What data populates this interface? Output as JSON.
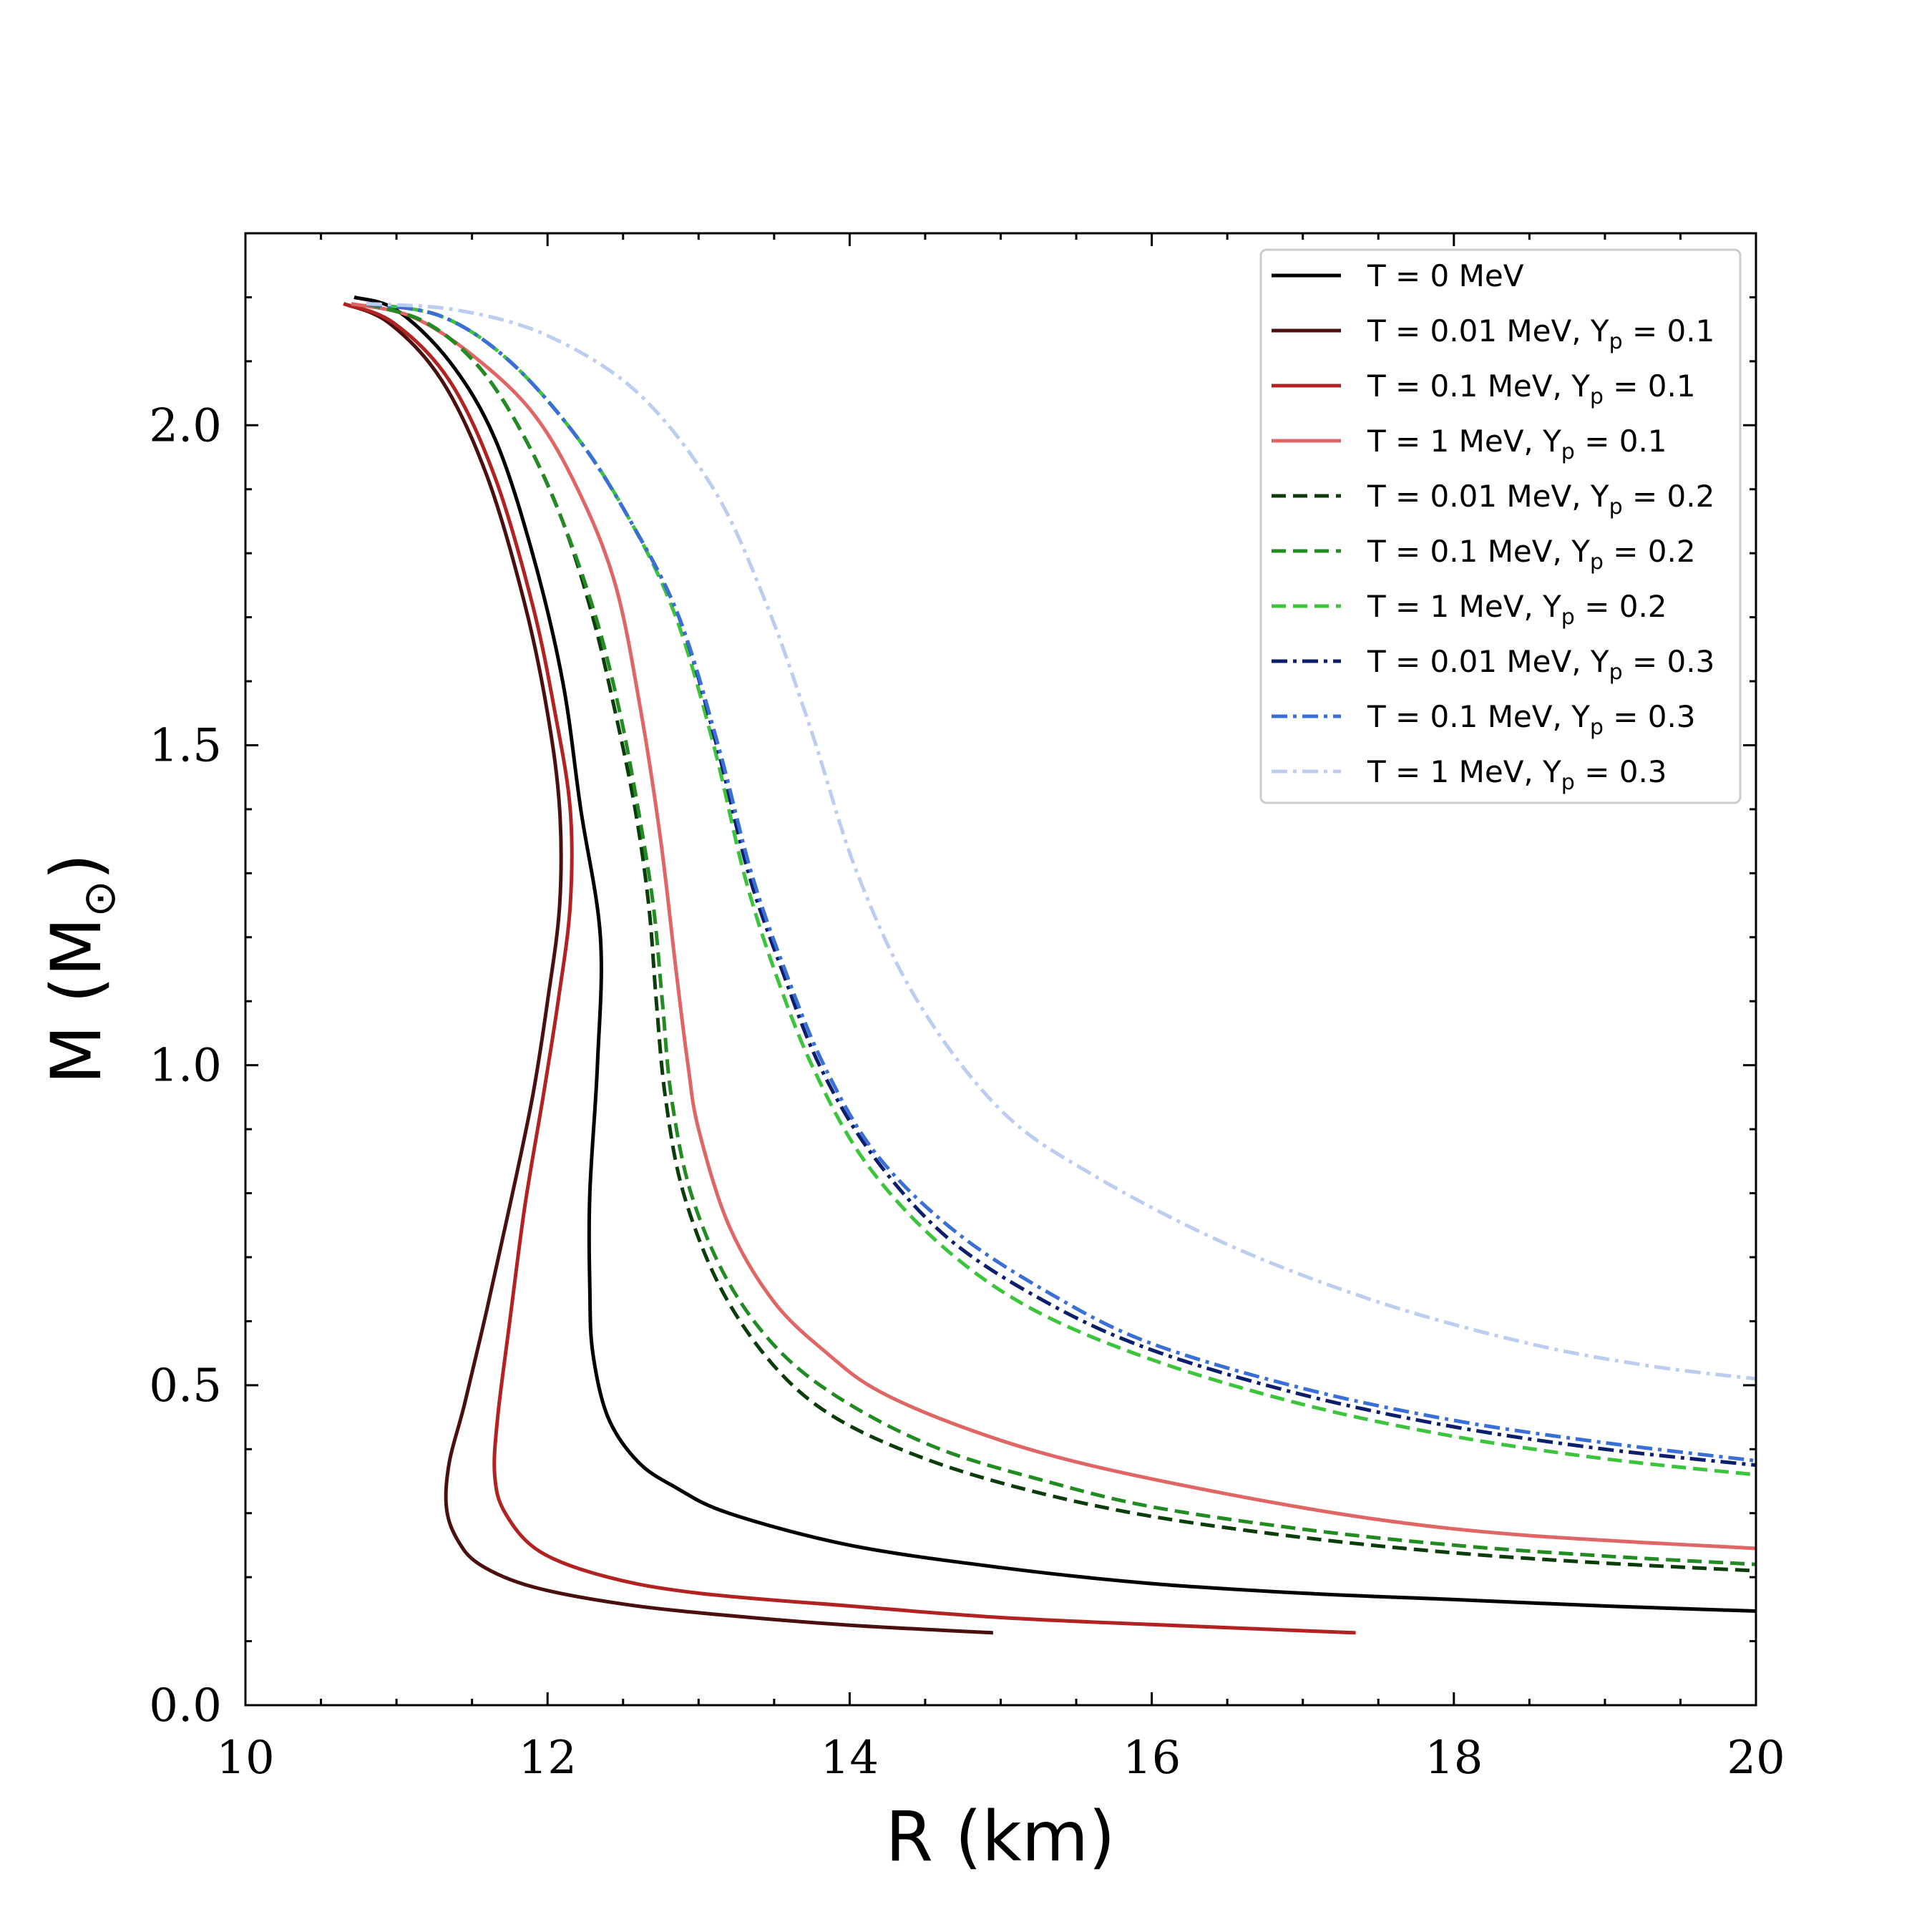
{
  "chart_data": {
    "type": "line",
    "xlabel": "R (km)",
    "ylabel": "M (M",
    "ylabel_symbol": "⊙",
    "ylabel_close": ")",
    "xlim": [
      10,
      20
    ],
    "ylim": [
      0,
      2.3
    ],
    "x_ticks": [
      "10",
      "12",
      "14",
      "16",
      "18",
      "20"
    ],
    "y_ticks": [
      "0.0",
      "0.5",
      "1.0",
      "1.5",
      "2.0"
    ],
    "grid": false,
    "legend_position": "top-right",
    "series": [
      {
        "name": "T = 0 MeV",
        "legend": {
          "main": "T = 0 MeV",
          "sub": "",
          "tail": ""
        },
        "color": "#000000",
        "dash": "solid",
        "points": [
          [
            10.72,
            2.2
          ],
          [
            11.0,
            2.18
          ],
          [
            11.35,
            2.1
          ],
          [
            11.65,
            1.98
          ],
          [
            11.9,
            1.8
          ],
          [
            12.1,
            1.6
          ],
          [
            12.22,
            1.4
          ],
          [
            12.35,
            1.2
          ],
          [
            12.33,
            1.0
          ],
          [
            12.28,
            0.8
          ],
          [
            12.28,
            0.65
          ],
          [
            12.3,
            0.55
          ],
          [
            12.4,
            0.45
          ],
          [
            12.6,
            0.38
          ],
          [
            12.85,
            0.34
          ],
          [
            13.2,
            0.3
          ],
          [
            14.0,
            0.25
          ],
          [
            15.0,
            0.215
          ],
          [
            16.0,
            0.19
          ],
          [
            17.0,
            0.175
          ],
          [
            18.0,
            0.165
          ],
          [
            19.0,
            0.155
          ],
          [
            20.0,
            0.147
          ]
        ]
      },
      {
        "name": "T = 0.01 MeV, Y = 0.1",
        "legend": {
          "main": "T = 0.01 MeV, Y",
          "sub": "p",
          "tail": " = 0.1"
        },
        "color": "#4a0f0f",
        "dash": "solid",
        "points": [
          [
            10.65,
            2.19
          ],
          [
            10.95,
            2.16
          ],
          [
            11.3,
            2.07
          ],
          [
            11.6,
            1.92
          ],
          [
            11.85,
            1.72
          ],
          [
            12.0,
            1.55
          ],
          [
            12.08,
            1.4
          ],
          [
            12.08,
            1.25
          ],
          [
            12.0,
            1.1
          ],
          [
            11.9,
            0.95
          ],
          [
            11.75,
            0.78
          ],
          [
            11.6,
            0.62
          ],
          [
            11.45,
            0.47
          ],
          [
            11.35,
            0.38
          ],
          [
            11.33,
            0.31
          ],
          [
            11.4,
            0.26
          ],
          [
            11.55,
            0.22
          ],
          [
            11.9,
            0.185
          ],
          [
            12.5,
            0.158
          ],
          [
            13.2,
            0.14
          ],
          [
            14.0,
            0.125
          ],
          [
            14.95,
            0.113
          ]
        ]
      },
      {
        "name": "T = 0.1 MeV, Y = 0.1",
        "legend": {
          "main": "T = 0.1 MeV, Y",
          "sub": "p",
          "tail": " = 0.1"
        },
        "color": "#b22222",
        "dash": "solid",
        "points": [
          [
            10.65,
            2.19
          ],
          [
            10.98,
            2.16
          ],
          [
            11.35,
            2.07
          ],
          [
            11.65,
            1.92
          ],
          [
            11.9,
            1.72
          ],
          [
            12.05,
            1.55
          ],
          [
            12.15,
            1.4
          ],
          [
            12.15,
            1.25
          ],
          [
            12.07,
            1.1
          ],
          [
            11.97,
            0.95
          ],
          [
            11.85,
            0.78
          ],
          [
            11.75,
            0.6
          ],
          [
            11.67,
            0.45
          ],
          [
            11.65,
            0.36
          ],
          [
            11.72,
            0.3
          ],
          [
            11.95,
            0.24
          ],
          [
            12.4,
            0.2
          ],
          [
            13.0,
            0.175
          ],
          [
            14.0,
            0.155
          ],
          [
            15.0,
            0.137
          ],
          [
            16.0,
            0.126
          ],
          [
            17.35,
            0.113
          ]
        ]
      },
      {
        "name": "T = 1 MeV, Y = 0.1",
        "legend": {
          "main": "T = 1 MeV, Y",
          "sub": "p",
          "tail": " = 0.1"
        },
        "color": "#e06666",
        "dash": "solid",
        "points": [
          [
            10.7,
            2.19
          ],
          [
            11.1,
            2.17
          ],
          [
            11.5,
            2.11
          ],
          [
            11.9,
            2.02
          ],
          [
            12.2,
            1.9
          ],
          [
            12.45,
            1.75
          ],
          [
            12.62,
            1.55
          ],
          [
            12.75,
            1.35
          ],
          [
            12.85,
            1.15
          ],
          [
            12.93,
            1.0
          ],
          [
            13.0,
            0.9
          ],
          [
            13.2,
            0.75
          ],
          [
            13.5,
            0.63
          ],
          [
            13.85,
            0.55
          ],
          [
            14.2,
            0.49
          ],
          [
            14.8,
            0.43
          ],
          [
            15.5,
            0.38
          ],
          [
            16.5,
            0.33
          ],
          [
            17.5,
            0.29
          ],
          [
            18.5,
            0.265
          ],
          [
            20.0,
            0.245
          ]
        ]
      },
      {
        "name": "T = 0.01 MeV, Y = 0.2",
        "legend": {
          "main": "T = 0.01 MeV, Y",
          "sub": "p",
          "tail": " = 0.2"
        },
        "color": "#0b3d0b",
        "dash": "dashed",
        "points": [
          [
            10.8,
            2.19
          ],
          [
            11.2,
            2.16
          ],
          [
            11.55,
            2.09
          ],
          [
            11.85,
            1.98
          ],
          [
            12.1,
            1.85
          ],
          [
            12.3,
            1.7
          ],
          [
            12.45,
            1.55
          ],
          [
            12.58,
            1.4
          ],
          [
            12.67,
            1.25
          ],
          [
            12.72,
            1.1
          ],
          [
            12.78,
            0.95
          ],
          [
            12.9,
            0.8
          ],
          [
            13.15,
            0.65
          ],
          [
            13.5,
            0.53
          ],
          [
            13.9,
            0.45
          ],
          [
            14.5,
            0.385
          ],
          [
            15.2,
            0.335
          ],
          [
            16.0,
            0.295
          ],
          [
            17.0,
            0.262
          ],
          [
            18.0,
            0.238
          ],
          [
            19.0,
            0.222
          ],
          [
            20.0,
            0.21
          ]
        ]
      },
      {
        "name": "T = 0.1 MeV, Y = 0.2",
        "legend": {
          "main": "T = 0.1 MeV, Y",
          "sub": "p",
          "tail": " = 0.2"
        },
        "color": "#228b22",
        "dash": "dashed",
        "points": [
          [
            10.8,
            2.19
          ],
          [
            11.2,
            2.16
          ],
          [
            11.55,
            2.09
          ],
          [
            11.85,
            1.98
          ],
          [
            12.1,
            1.85
          ],
          [
            12.32,
            1.7
          ],
          [
            12.48,
            1.55
          ],
          [
            12.6,
            1.4
          ],
          [
            12.7,
            1.25
          ],
          [
            12.76,
            1.1
          ],
          [
            12.82,
            0.95
          ],
          [
            12.95,
            0.8
          ],
          [
            13.2,
            0.66
          ],
          [
            13.55,
            0.55
          ],
          [
            14.0,
            0.47
          ],
          [
            14.6,
            0.4
          ],
          [
            15.3,
            0.35
          ],
          [
            16.0,
            0.31
          ],
          [
            17.0,
            0.275
          ],
          [
            18.0,
            0.25
          ],
          [
            19.0,
            0.233
          ],
          [
            20.0,
            0.22
          ]
        ]
      },
      {
        "name": "T = 1 MeV, Y = 0.2",
        "legend": {
          "main": "T = 1 MeV, Y",
          "sub": "p",
          "tail": " = 0.2"
        },
        "color": "#3cc43c",
        "dash": "dashed",
        "points": [
          [
            10.8,
            2.19
          ],
          [
            11.3,
            2.17
          ],
          [
            11.75,
            2.1
          ],
          [
            12.2,
            1.98
          ],
          [
            12.55,
            1.85
          ],
          [
            12.85,
            1.7
          ],
          [
            13.1,
            1.5
          ],
          [
            13.3,
            1.3
          ],
          [
            13.5,
            1.15
          ],
          [
            13.75,
            1.0
          ],
          [
            14.1,
            0.85
          ],
          [
            14.6,
            0.72
          ],
          [
            15.2,
            0.62
          ],
          [
            16.0,
            0.54
          ],
          [
            17.0,
            0.47
          ],
          [
            18.0,
            0.42
          ],
          [
            19.0,
            0.385
          ],
          [
            20.0,
            0.36
          ]
        ]
      },
      {
        "name": "T = 0.01 MeV, Y = 0.3",
        "legend": {
          "main": "T = 0.01 MeV, Y",
          "sub": "p",
          "tail": " = 0.3"
        },
        "color": "#0d1f6b",
        "dash": "dashdot",
        "points": [
          [
            10.8,
            2.19
          ],
          [
            11.3,
            2.17
          ],
          [
            11.75,
            2.1
          ],
          [
            12.2,
            1.98
          ],
          [
            12.55,
            1.85
          ],
          [
            12.87,
            1.7
          ],
          [
            13.12,
            1.5
          ],
          [
            13.33,
            1.3
          ],
          [
            13.55,
            1.15
          ],
          [
            13.8,
            1.0
          ],
          [
            14.15,
            0.86
          ],
          [
            14.65,
            0.73
          ],
          [
            15.3,
            0.63
          ],
          [
            16.0,
            0.555
          ],
          [
            17.0,
            0.485
          ],
          [
            18.0,
            0.435
          ],
          [
            19.0,
            0.4
          ],
          [
            20.0,
            0.375
          ]
        ]
      },
      {
        "name": "T = 0.1 MeV, Y = 0.3",
        "legend": {
          "main": "T = 0.1 MeV, Y",
          "sub": "p",
          "tail": " = 0.3"
        },
        "color": "#3a6fd8",
        "dash": "dashdot",
        "points": [
          [
            10.8,
            2.19
          ],
          [
            11.3,
            2.17
          ],
          [
            11.75,
            2.1
          ],
          [
            12.2,
            1.98
          ],
          [
            12.55,
            1.85
          ],
          [
            12.87,
            1.7
          ],
          [
            13.13,
            1.5
          ],
          [
            13.35,
            1.3
          ],
          [
            13.57,
            1.15
          ],
          [
            13.83,
            1.0
          ],
          [
            14.18,
            0.86
          ],
          [
            14.7,
            0.74
          ],
          [
            15.35,
            0.64
          ],
          [
            16.0,
            0.565
          ],
          [
            17.0,
            0.495
          ],
          [
            18.0,
            0.445
          ],
          [
            19.0,
            0.41
          ],
          [
            20.0,
            0.382
          ]
        ]
      },
      {
        "name": "T = 1 MeV, Y = 0.3",
        "legend": {
          "main": "T = 1 MeV, Y",
          "sub": "p",
          "tail": " = 0.3"
        },
        "color": "#bccdf0",
        "dash": "dashdot",
        "points": [
          [
            10.8,
            2.19
          ],
          [
            11.4,
            2.18
          ],
          [
            12.0,
            2.14
          ],
          [
            12.6,
            2.05
          ],
          [
            13.1,
            1.9
          ],
          [
            13.45,
            1.72
          ],
          [
            13.75,
            1.52
          ],
          [
            14.05,
            1.3
          ],
          [
            14.45,
            1.1
          ],
          [
            15.0,
            0.93
          ],
          [
            15.6,
            0.83
          ],
          [
            16.5,
            0.72
          ],
          [
            17.5,
            0.63
          ],
          [
            18.5,
            0.565
          ],
          [
            19.3,
            0.53
          ],
          [
            20.0,
            0.51
          ]
        ]
      }
    ]
  }
}
